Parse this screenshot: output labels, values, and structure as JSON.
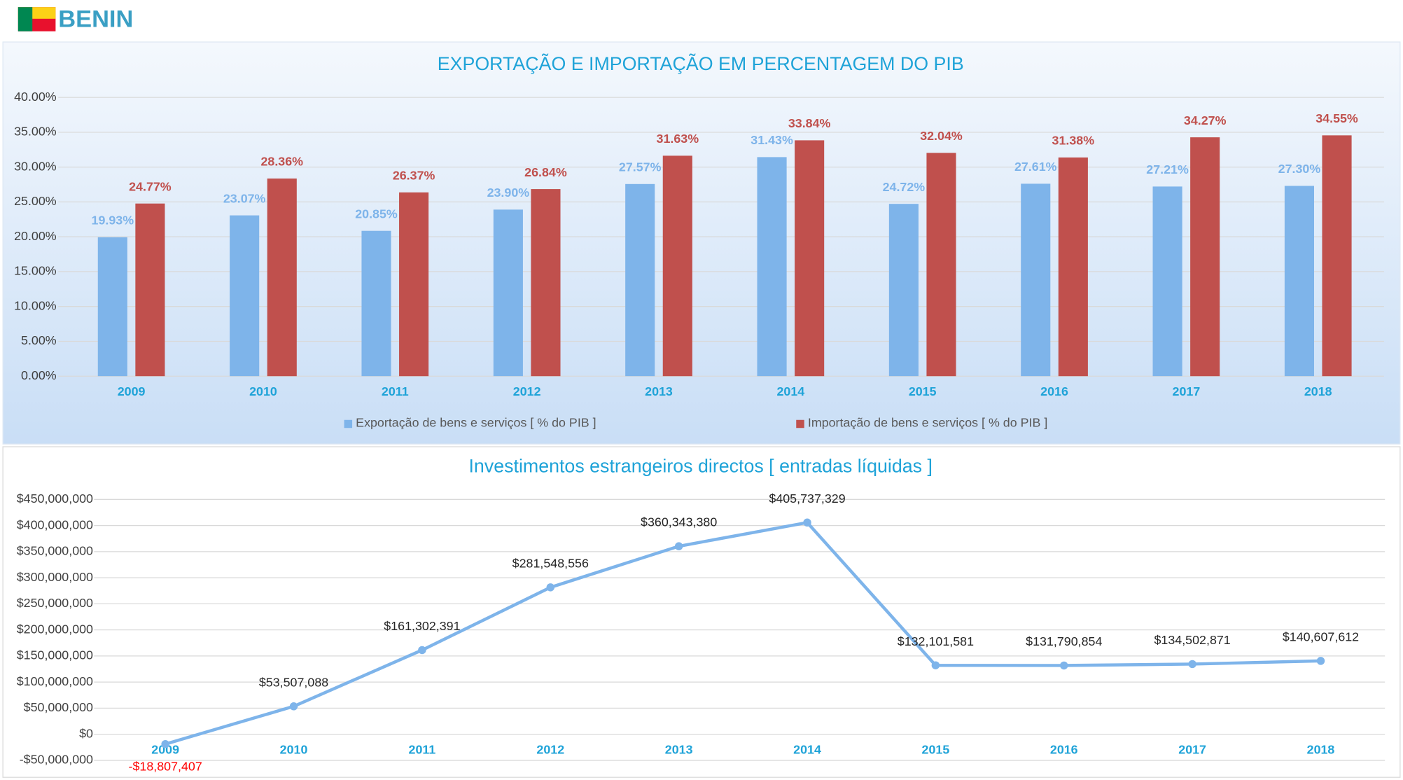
{
  "header": {
    "title": "BENIN"
  },
  "chart_data": [
    {
      "type": "bar",
      "title": "EXPORTAÇÃO E IMPORTAÇÃO EM PERCENTAGEM DO PIB",
      "categories": [
        "2009",
        "2010",
        "2011",
        "2012",
        "2013",
        "2014",
        "2015",
        "2016",
        "2017",
        "2018"
      ],
      "series": [
        {
          "name": "Exportação de bens e serviços [ % do PIB ]",
          "color": "#7eb4ea",
          "values": [
            19.93,
            23.07,
            20.85,
            23.9,
            27.57,
            31.43,
            24.72,
            27.61,
            27.21,
            27.3
          ],
          "value_labels": [
            "19.93%",
            "23.07%",
            "20.85%",
            "23.90%",
            "27.57%",
            "31.43%",
            "24.72%",
            "27.61%",
            "27.21%",
            "27.30%"
          ]
        },
        {
          "name": "Importação de bens e serviços [ % do PIB ]",
          "color": "#c0504d",
          "values": [
            24.77,
            28.36,
            26.37,
            26.84,
            31.63,
            33.84,
            32.04,
            31.38,
            34.27,
            34.55
          ],
          "value_labels": [
            "24.77%",
            "28.36%",
            "26.37%",
            "26.84%",
            "31.63%",
            "33.84%",
            "32.04%",
            "31.38%",
            "34.27%",
            "34.55%"
          ]
        }
      ],
      "ylim": [
        0,
        40
      ],
      "yticks": [
        {
          "value": 0,
          "label": "0.00%"
        },
        {
          "value": 5,
          "label": "5.00%"
        },
        {
          "value": 10,
          "label": "10.00%"
        },
        {
          "value": 15,
          "label": "15.00%"
        },
        {
          "value": 20,
          "label": "20.00%"
        },
        {
          "value": 25,
          "label": "25.00%"
        },
        {
          "value": 30,
          "label": "30.00%"
        },
        {
          "value": 35,
          "label": "35.00%"
        },
        {
          "value": 40,
          "label": "40.00%"
        }
      ],
      "grid": true,
      "legend": "bottom"
    },
    {
      "type": "line",
      "title": "Investimentos estrangeiros directos [ entradas líquidas ]",
      "categories": [
        "2009",
        "2010",
        "2011",
        "2012",
        "2013",
        "2014",
        "2015",
        "2016",
        "2017",
        "2018"
      ],
      "color": "#7eb4ea",
      "values": [
        -18807407,
        53507088,
        161302391,
        281548556,
        360343380,
        405737329,
        132101581,
        131790854,
        134502871,
        140607612
      ],
      "value_labels": [
        "-$18,807,407",
        "$53,507,088",
        "$161,302,391",
        "$281,548,556",
        "$360,343,380",
        "$405,737,329",
        "$132,101,581",
        "$131,790,854",
        "$134,502,871",
        "$140,607,612"
      ],
      "ylim": [
        -50000000,
        450000000
      ],
      "yticks": [
        {
          "value": -50000000,
          "label": "-$50,000,000"
        },
        {
          "value": 0,
          "label": "$0"
        },
        {
          "value": 50000000,
          "label": "$50,000,000"
        },
        {
          "value": 100000000,
          "label": "$100,000,000"
        },
        {
          "value": 150000000,
          "label": "$150,000,000"
        },
        {
          "value": 200000000,
          "label": "$200,000,000"
        },
        {
          "value": 250000000,
          "label": "$250,000,000"
        },
        {
          "value": 300000000,
          "label": "$300,000,000"
        },
        {
          "value": 350000000,
          "label": "$350,000,000"
        },
        {
          "value": 400000000,
          "label": "$400,000,000"
        },
        {
          "value": 450000000,
          "label": "$450,000,000"
        }
      ],
      "grid": true
    }
  ]
}
